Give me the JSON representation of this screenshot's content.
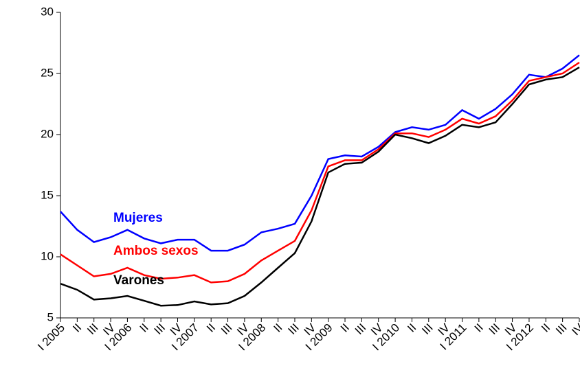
{
  "chart_data": {
    "type": "line",
    "categories": [
      "I 2005",
      "II",
      "III",
      "IV",
      "I 2006",
      "II",
      "III",
      "IV",
      "I 2007",
      "II",
      "III",
      "IV",
      "I 2008",
      "II",
      "III",
      "IV",
      "I 2009",
      "II",
      "III",
      "IV",
      "I 2010",
      "II",
      "III",
      "IV",
      "I 2011",
      "II",
      "III",
      "IV",
      "I 2012",
      "II",
      "III",
      "IV"
    ],
    "series": [
      {
        "name": "Mujeres",
        "color": "#0000ff",
        "values": [
          13.7,
          12.2,
          11.2,
          11.6,
          12.2,
          11.5,
          11.1,
          11.4,
          11.4,
          10.5,
          10.5,
          11.0,
          12.0,
          12.3,
          12.7,
          15.0,
          18.0,
          18.3,
          18.2,
          19.0,
          20.2,
          20.6,
          20.4,
          20.8,
          22.0,
          21.3,
          22.1,
          23.3,
          24.9,
          24.7,
          25.4,
          26.5
        ]
      },
      {
        "name": "Ambos sexos",
        "color": "#ff0000",
        "values": [
          10.2,
          9.3,
          8.4,
          8.6,
          9.1,
          8.5,
          8.2,
          8.3,
          8.5,
          7.9,
          8.0,
          8.6,
          9.7,
          10.5,
          11.3,
          13.8,
          17.4,
          17.9,
          17.9,
          18.8,
          20.1,
          20.1,
          19.8,
          20.4,
          21.3,
          20.9,
          21.5,
          22.8,
          24.4,
          24.7,
          25.0,
          25.9
        ]
      },
      {
        "name": "Varones",
        "color": "#000000",
        "values": [
          7.8,
          7.3,
          6.5,
          6.6,
          6.8,
          6.4,
          6.0,
          6.05,
          6.35,
          6.1,
          6.2,
          6.8,
          7.9,
          9.1,
          10.3,
          12.9,
          16.9,
          17.6,
          17.7,
          18.6,
          20.0,
          19.7,
          19.3,
          19.9,
          20.8,
          20.6,
          21.0,
          22.5,
          24.1,
          24.5,
          24.7,
          25.5
        ]
      }
    ],
    "ylim": [
      5,
      30
    ],
    "yticks": [
      5,
      10,
      15,
      20,
      25,
      30
    ]
  }
}
